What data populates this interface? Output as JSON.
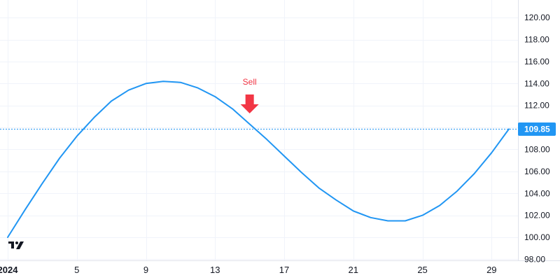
{
  "chart_data": {
    "type": "line",
    "x_unit": "day of January 2024",
    "x": [
      1,
      2,
      3,
      4,
      5,
      6,
      7,
      8,
      9,
      10,
      11,
      12,
      13,
      14,
      15,
      16,
      17,
      18,
      19,
      20,
      21,
      22,
      23,
      24,
      25,
      26,
      27,
      28,
      29,
      30
    ],
    "series": [
      {
        "color": "#2196F3",
        "values": [
          100.0,
          102.5,
          104.9,
          107.2,
          109.2,
          110.9,
          112.4,
          113.4,
          114.0,
          114.2,
          114.1,
          113.6,
          112.8,
          111.7,
          110.3,
          108.9,
          107.4,
          105.9,
          104.5,
          103.4,
          102.4,
          101.8,
          101.5,
          101.5,
          102.0,
          102.9,
          104.2,
          105.8,
          107.7,
          109.85
        ]
      }
    ],
    "x_ticks": [
      "2024",
      "5",
      "9",
      "13",
      "17",
      "21",
      "25",
      "29"
    ],
    "x_tick_values": [
      1,
      5,
      9,
      13,
      17,
      21,
      25,
      29
    ],
    "y_ticks": [
      "98.00",
      "100.00",
      "102.00",
      "104.00",
      "106.00",
      "108.00",
      "110.00",
      "112.00",
      "114.00",
      "116.00",
      "118.00",
      "120.00"
    ],
    "y_tick_values": [
      98,
      100,
      102,
      104,
      106,
      108,
      110,
      112,
      114,
      116,
      118,
      120
    ],
    "ylim": [
      97.9,
      121.6
    ],
    "xlim": [
      1,
      30.1
    ],
    "grid": true,
    "last_price": {
      "label": "109.85",
      "value": 109.85,
      "color": "#2196F3"
    },
    "annotations": [
      {
        "text": "Sell",
        "x": 15,
        "y": 110.3,
        "color": "#F23645",
        "marker": "arrow-down"
      }
    ],
    "logo": "tradingview-logo-icon"
  }
}
